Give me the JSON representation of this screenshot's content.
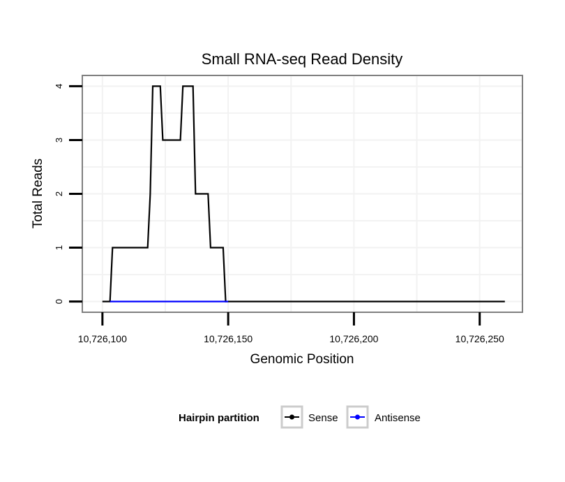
{
  "chart_data": {
    "type": "line",
    "title": "Small RNA-seq Read Density",
    "xlabel": "Genomic Position",
    "ylabel": "Total Reads",
    "xlim": [
      10726092,
      10726267
    ],
    "ylim": [
      -0.2,
      4.2
    ],
    "x_ticks": [
      10726100,
      10726150,
      10726200,
      10726250
    ],
    "x_tick_labels": [
      "10,726,100",
      "10,726,150",
      "10,726,200",
      "10,726,250"
    ],
    "y_ticks": [
      0,
      1,
      2,
      3,
      4
    ],
    "y_tick_labels": [
      "0",
      "1",
      "2",
      "3",
      "4"
    ],
    "grid": true,
    "legend": {
      "title": "Hairpin partition",
      "position": "bottom",
      "entries": [
        "Sense",
        "Antisense"
      ]
    },
    "series": [
      {
        "name": "Sense",
        "color": "#000000",
        "x": [
          10726100,
          10726103,
          10726104,
          10726118,
          10726119,
          10726120,
          10726123,
          10726124,
          10726131,
          10726132,
          10726136,
          10726137,
          10726142,
          10726143,
          10726148,
          10726149,
          10726150,
          10726260
        ],
        "y": [
          0,
          0,
          1,
          1,
          2,
          4,
          4,
          3,
          3,
          4,
          4,
          2,
          2,
          1,
          1,
          0,
          0,
          0
        ]
      },
      {
        "name": "Antisense",
        "color": "#0000ff",
        "x": [
          10726103,
          10726150
        ],
        "y": [
          0,
          0
        ]
      }
    ]
  }
}
